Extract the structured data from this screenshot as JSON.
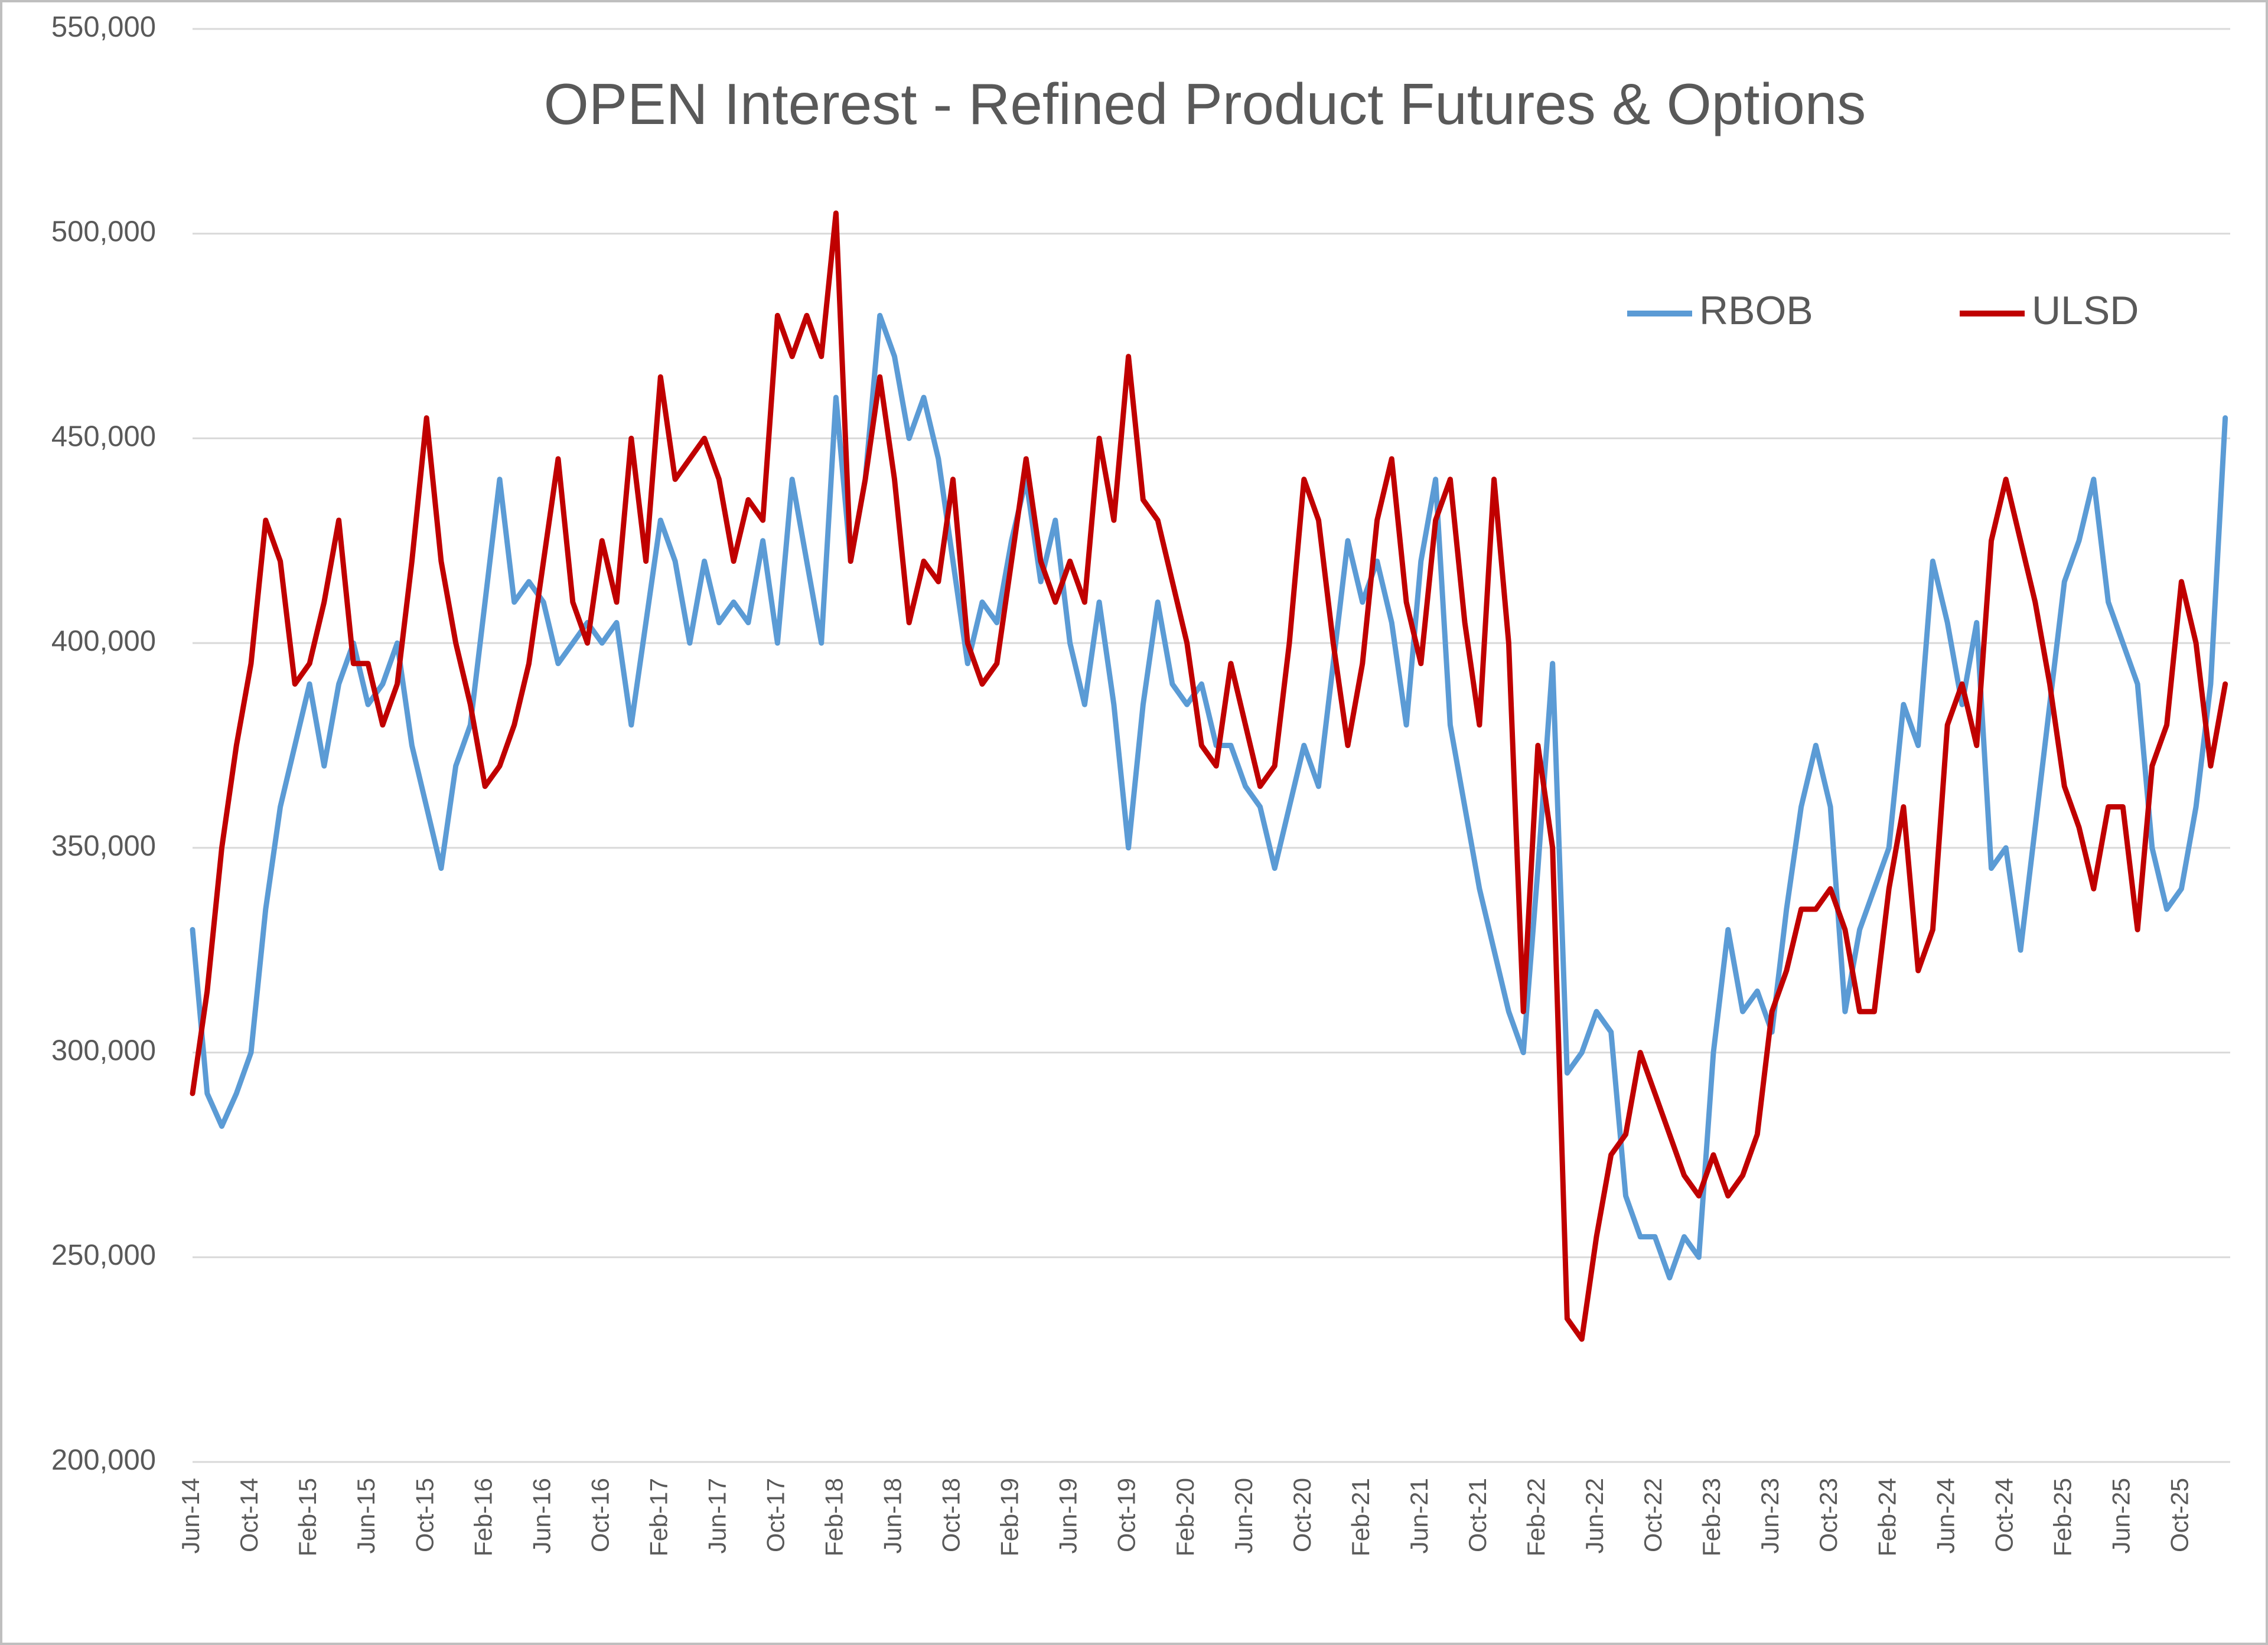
{
  "chart_data": {
    "type": "line",
    "title": "OPEN Interest - Refined Product Futures & Options",
    "categories": [
      "Jun-14",
      null,
      null,
      null,
      "Oct-14",
      null,
      null,
      null,
      "Feb-15",
      null,
      null,
      null,
      "Jun-15",
      null,
      null,
      null,
      "Oct-15",
      null,
      null,
      null,
      "Feb-16",
      null,
      null,
      null,
      "Jun-16",
      null,
      null,
      null,
      "Oct-16",
      null,
      null,
      null,
      "Feb-17",
      null,
      null,
      null,
      "Jun-17",
      null,
      null,
      null,
      "Oct-17",
      null,
      null,
      null,
      "Feb-18",
      null,
      null,
      null,
      "Jun-18",
      null,
      null,
      null,
      "Oct-18",
      null,
      null,
      null,
      "Feb-19",
      null,
      null,
      null,
      "Jun-19",
      null,
      null,
      null,
      "Oct-19",
      null,
      null,
      null,
      "Feb-20",
      null,
      null,
      null,
      "Jun-20",
      null,
      null,
      null,
      "Oct-20",
      null,
      null,
      null,
      "Feb-21",
      null,
      null,
      null,
      "Jun-21",
      null,
      null,
      null,
      "Oct-21",
      null,
      null,
      null,
      "Feb-22",
      null,
      null,
      null,
      "Jun-22",
      null,
      null,
      null,
      "Oct-22",
      null,
      null,
      null,
      "Feb-23",
      null,
      null,
      null,
      "Jun-23",
      null,
      null,
      null,
      "Oct-23",
      null,
      null,
      null,
      "Feb-24",
      null,
      null,
      null,
      "Jun-24",
      null,
      null,
      null,
      "Oct-24",
      null,
      null,
      null,
      "Feb-25",
      null,
      null,
      null,
      "Jun-25",
      null,
      null,
      null,
      "Oct-25",
      null,
      null,
      null
    ],
    "series": [
      {
        "name": "RBOB",
        "color": "#5b9bd5",
        "values": [
          330000,
          290000,
          282000,
          290000,
          300000,
          335000,
          360000,
          375000,
          390000,
          370000,
          390000,
          400000,
          385000,
          390000,
          400000,
          375000,
          360000,
          345000,
          370000,
          380000,
          410000,
          440000,
          410000,
          415000,
          410000,
          395000,
          400000,
          405000,
          400000,
          405000,
          380000,
          405000,
          430000,
          420000,
          400000,
          420000,
          405000,
          410000,
          405000,
          425000,
          400000,
          440000,
          420000,
          400000,
          460000,
          420000,
          440000,
          480000,
          470000,
          450000,
          460000,
          445000,
          420000,
          395000,
          410000,
          405000,
          425000,
          440000,
          415000,
          430000,
          400000,
          385000,
          410000,
          385000,
          350000,
          385000,
          410000,
          390000,
          385000,
          390000,
          375000,
          375000,
          365000,
          360000,
          345000,
          360000,
          375000,
          365000,
          395000,
          425000,
          410000,
          420000,
          405000,
          380000,
          420000,
          440000,
          380000,
          360000,
          340000,
          325000,
          310000,
          300000,
          345000,
          395000,
          295000,
          300000,
          310000,
          305000,
          265000,
          255000,
          255000,
          245000,
          255000,
          250000,
          300000,
          330000,
          310000,
          315000,
          305000,
          335000,
          360000,
          375000,
          360000,
          310000,
          330000,
          340000,
          350000,
          385000,
          375000,
          420000,
          405000,
          385000,
          405000,
          345000,
          350000,
          325000,
          355000,
          385000,
          415000,
          425000,
          440000,
          410000,
          400000,
          390000,
          350000,
          335000,
          340000,
          360000,
          390000,
          455000
        ]
      },
      {
        "name": "ULSD",
        "color": "#c00000",
        "values": [
          290000,
          315000,
          350000,
          375000,
          395000,
          430000,
          420000,
          390000,
          395000,
          410000,
          430000,
          395000,
          395000,
          380000,
          390000,
          420000,
          455000,
          420000,
          400000,
          385000,
          365000,
          370000,
          380000,
          395000,
          420000,
          445000,
          410000,
          400000,
          425000,
          410000,
          450000,
          420000,
          465000,
          440000,
          445000,
          450000,
          440000,
          420000,
          435000,
          430000,
          480000,
          470000,
          480000,
          470000,
          505000,
          420000,
          440000,
          465000,
          440000,
          405000,
          420000,
          415000,
          440000,
          400000,
          390000,
          395000,
          420000,
          445000,
          420000,
          410000,
          420000,
          410000,
          450000,
          430000,
          470000,
          435000,
          430000,
          415000,
          400000,
          375000,
          370000,
          395000,
          380000,
          365000,
          370000,
          400000,
          440000,
          430000,
          400000,
          375000,
          395000,
          430000,
          445000,
          410000,
          395000,
          430000,
          440000,
          405000,
          380000,
          440000,
          400000,
          310000,
          375000,
          350000,
          235000,
          230000,
          255000,
          275000,
          280000,
          300000,
          290000,
          280000,
          270000,
          265000,
          275000,
          265000,
          270000,
          280000,
          310000,
          320000,
          335000,
          335000,
          340000,
          330000,
          310000,
          310000,
          340000,
          360000,
          320000,
          330000,
          380000,
          390000,
          375000,
          425000,
          440000,
          425000,
          410000,
          390000,
          365000,
          355000,
          340000,
          360000,
          360000,
          330000,
          370000,
          380000,
          415000,
          400000,
          370000,
          390000
        ]
      }
    ],
    "ylim": [
      200000,
      550000
    ],
    "yticks": [
      {
        "value": 200000,
        "label": "200,000"
      },
      {
        "value": 250000,
        "label": "250,000"
      },
      {
        "value": 300000,
        "label": "300,000"
      },
      {
        "value": 350000,
        "label": "350,000"
      },
      {
        "value": 400000,
        "label": "400,000"
      },
      {
        "value": 450000,
        "label": "450,000"
      },
      {
        "value": 500000,
        "label": "500,000"
      },
      {
        "value": 550000,
        "label": "550,000"
      }
    ],
    "grid": true,
    "legend": "top-right"
  }
}
